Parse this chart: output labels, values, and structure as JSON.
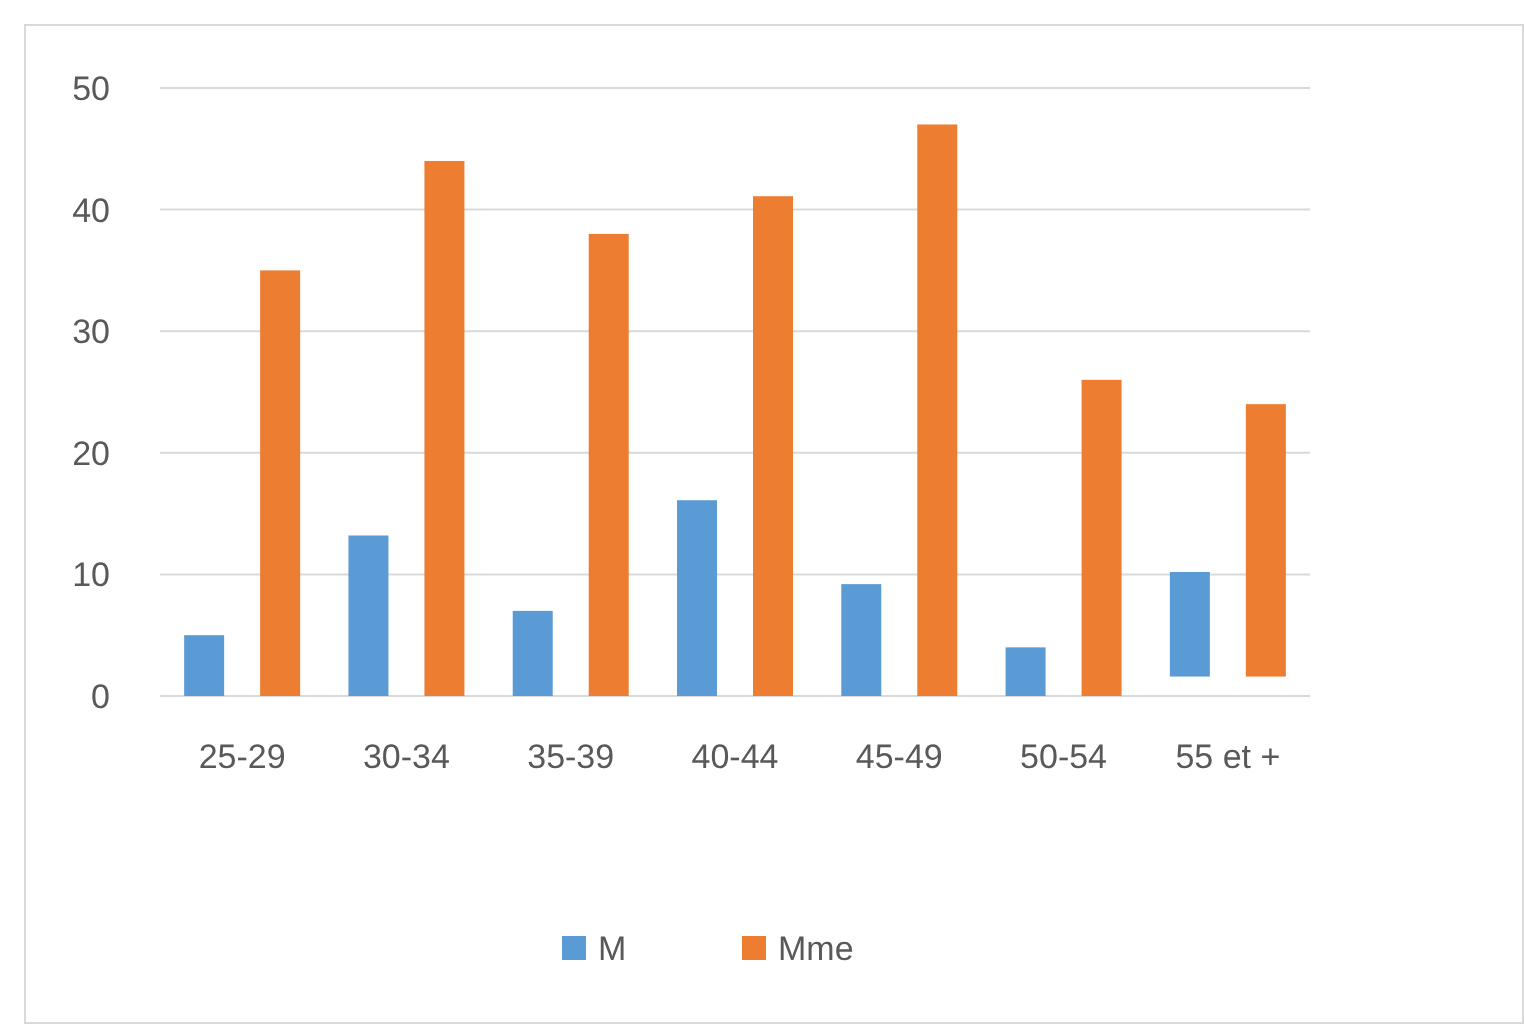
{
  "chart_data": {
    "type": "bar",
    "categories": [
      "25-29",
      "30-34",
      "35-39",
      "40-44",
      "45-49",
      "50-54",
      "55 et +"
    ],
    "series": [
      {
        "name": "M",
        "color": "#5b9bd5",
        "values": [
          5,
          13.2,
          7,
          16.1,
          9.2,
          4,
          8.6
        ],
        "base": [
          0,
          0,
          0,
          0,
          0,
          0,
          1.6
        ]
      },
      {
        "name": "Mme",
        "color": "#ed7d31",
        "values": [
          35,
          44,
          38,
          41.1,
          47,
          26,
          22.4
        ],
        "base": [
          0,
          0,
          0,
          0,
          0,
          0,
          1.6
        ]
      }
    ],
    "ylim": [
      0,
      50
    ],
    "yticks": [
      0,
      10,
      20,
      30,
      40,
      50
    ],
    "grid": "y",
    "legend": "bottom"
  }
}
